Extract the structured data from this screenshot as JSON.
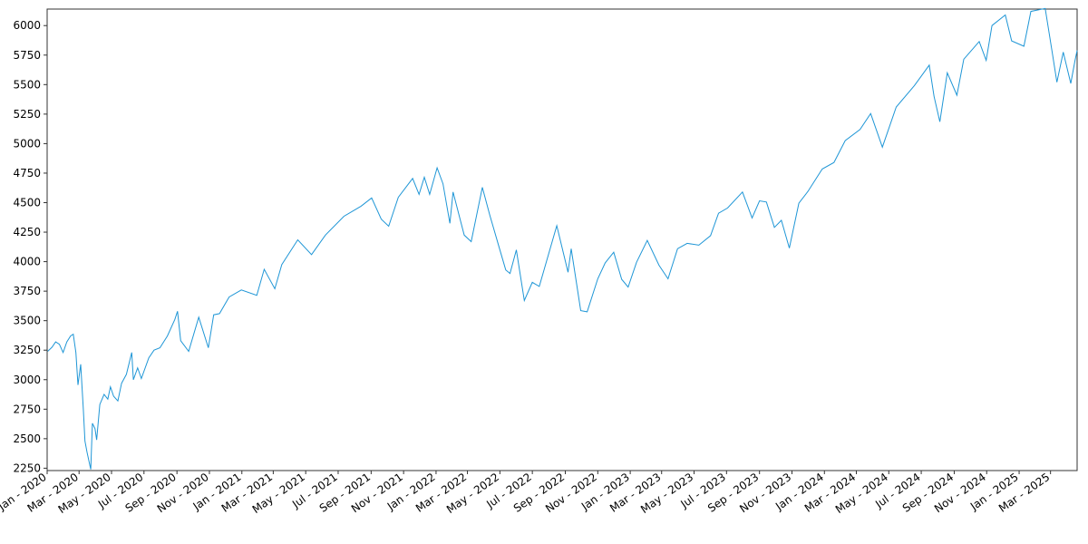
{
  "chart_data": {
    "type": "line",
    "title": "",
    "xlabel": "",
    "ylabel": "",
    "x_range": [
      "2020-01-01",
      "2025-04-20"
    ],
    "ylim": [
      2230,
      6140
    ],
    "y_ticks": [
      2250,
      2500,
      2750,
      3000,
      3250,
      3500,
      3750,
      4000,
      4250,
      4500,
      4750,
      5000,
      5250,
      5500,
      5750,
      6000
    ],
    "x_ticks": [
      {
        "date": "2020-01-01",
        "label": "Jan - 2020"
      },
      {
        "date": "2020-03-01",
        "label": "Mar - 2020"
      },
      {
        "date": "2020-05-01",
        "label": "May - 2020"
      },
      {
        "date": "2020-07-01",
        "label": "Jul - 2020"
      },
      {
        "date": "2020-09-01",
        "label": "Sep - 2020"
      },
      {
        "date": "2020-11-01",
        "label": "Nov - 2020"
      },
      {
        "date": "2021-01-01",
        "label": "Jan - 2021"
      },
      {
        "date": "2021-03-01",
        "label": "Mar - 2021"
      },
      {
        "date": "2021-05-01",
        "label": "May - 2021"
      },
      {
        "date": "2021-07-01",
        "label": "Jul - 2021"
      },
      {
        "date": "2021-09-01",
        "label": "Sep - 2021"
      },
      {
        "date": "2021-11-01",
        "label": "Nov - 2021"
      },
      {
        "date": "2022-01-01",
        "label": "Jan - 2022"
      },
      {
        "date": "2022-03-01",
        "label": "Mar - 2022"
      },
      {
        "date": "2022-05-01",
        "label": "May - 2022"
      },
      {
        "date": "2022-07-01",
        "label": "Jul - 2022"
      },
      {
        "date": "2022-09-01",
        "label": "Sep - 2022"
      },
      {
        "date": "2022-11-01",
        "label": "Nov - 2022"
      },
      {
        "date": "2023-01-01",
        "label": "Jan - 2023"
      },
      {
        "date": "2023-03-01",
        "label": "Mar - 2023"
      },
      {
        "date": "2023-05-01",
        "label": "May - 2023"
      },
      {
        "date": "2023-07-01",
        "label": "Jul - 2023"
      },
      {
        "date": "2023-09-01",
        "label": "Sep - 2023"
      },
      {
        "date": "2023-11-01",
        "label": "Nov - 2023"
      },
      {
        "date": "2024-01-01",
        "label": "Jan - 2024"
      },
      {
        "date": "2024-03-01",
        "label": "Mar - 2024"
      },
      {
        "date": "2024-05-01",
        "label": "May - 2024"
      },
      {
        "date": "2024-07-01",
        "label": "Jul - 2024"
      },
      {
        "date": "2024-09-01",
        "label": "Sep - 2024"
      },
      {
        "date": "2024-11-01",
        "label": "Nov - 2024"
      },
      {
        "date": "2025-01-01",
        "label": "Jan - 2025"
      },
      {
        "date": "2025-03-01",
        "label": "Mar - 2025"
      }
    ],
    "grid": false,
    "line_color": "#1f96d6",
    "series": [
      {
        "points": [
          [
            "2020-01-02",
            3240
          ],
          [
            "2020-01-10",
            3275
          ],
          [
            "2020-01-17",
            3320
          ],
          [
            "2020-01-24",
            3300
          ],
          [
            "2020-01-31",
            3230
          ],
          [
            "2020-02-07",
            3320
          ],
          [
            "2020-02-14",
            3370
          ],
          [
            "2020-02-19",
            3385
          ],
          [
            "2020-02-24",
            3230
          ],
          [
            "2020-02-28",
            2955
          ],
          [
            "2020-03-04",
            3130
          ],
          [
            "2020-03-09",
            2750
          ],
          [
            "2020-03-12",
            2480
          ],
          [
            "2020-03-16",
            2385
          ],
          [
            "2020-03-20",
            2300
          ],
          [
            "2020-03-23",
            2240
          ],
          [
            "2020-03-26",
            2630
          ],
          [
            "2020-03-31",
            2585
          ],
          [
            "2020-04-03",
            2490
          ],
          [
            "2020-04-09",
            2790
          ],
          [
            "2020-04-17",
            2875
          ],
          [
            "2020-04-24",
            2835
          ],
          [
            "2020-04-29",
            2940
          ],
          [
            "2020-05-05",
            2860
          ],
          [
            "2020-05-13",
            2820
          ],
          [
            "2020-05-20",
            2970
          ],
          [
            "2020-05-29",
            3045
          ],
          [
            "2020-06-08",
            3230
          ],
          [
            "2020-06-11",
            3000
          ],
          [
            "2020-06-19",
            3100
          ],
          [
            "2020-06-26",
            3010
          ],
          [
            "2020-07-10",
            3185
          ],
          [
            "2020-07-20",
            3250
          ],
          [
            "2020-07-31",
            3270
          ],
          [
            "2020-08-14",
            3370
          ],
          [
            "2020-08-28",
            3510
          ],
          [
            "2020-09-02",
            3580
          ],
          [
            "2020-09-08",
            3330
          ],
          [
            "2020-09-23",
            3240
          ],
          [
            "2020-10-12",
            3530
          ],
          [
            "2020-10-30",
            3270
          ],
          [
            "2020-11-09",
            3550
          ],
          [
            "2020-11-20",
            3560
          ],
          [
            "2020-12-08",
            3700
          ],
          [
            "2020-12-31",
            3760
          ],
          [
            "2021-01-29",
            3715
          ],
          [
            "2021-02-12",
            3935
          ],
          [
            "2021-03-04",
            3770
          ],
          [
            "2021-03-17",
            3975
          ],
          [
            "2021-04-16",
            4185
          ],
          [
            "2021-05-12",
            4060
          ],
          [
            "2021-06-07",
            4225
          ],
          [
            "2021-07-12",
            4385
          ],
          [
            "2021-08-13",
            4470
          ],
          [
            "2021-09-02",
            4540
          ],
          [
            "2021-09-20",
            4360
          ],
          [
            "2021-10-04",
            4300
          ],
          [
            "2021-10-22",
            4545
          ],
          [
            "2021-11-18",
            4705
          ],
          [
            "2021-11-30",
            4570
          ],
          [
            "2021-12-10",
            4715
          ],
          [
            "2021-12-20",
            4570
          ],
          [
            "2022-01-03",
            4795
          ],
          [
            "2022-01-14",
            4660
          ],
          [
            "2022-01-27",
            4325
          ],
          [
            "2022-02-02",
            4590
          ],
          [
            "2022-02-23",
            4225
          ],
          [
            "2022-03-08",
            4170
          ],
          [
            "2022-03-29",
            4630
          ],
          [
            "2022-04-12",
            4395
          ],
          [
            "2022-04-29",
            4130
          ],
          [
            "2022-05-12",
            3930
          ],
          [
            "2022-05-20",
            3900
          ],
          [
            "2022-06-01",
            4100
          ],
          [
            "2022-06-16",
            3670
          ],
          [
            "2022-07-01",
            3825
          ],
          [
            "2022-07-14",
            3790
          ],
          [
            "2022-08-16",
            4305
          ],
          [
            "2022-09-06",
            3910
          ],
          [
            "2022-09-12",
            4110
          ],
          [
            "2022-09-30",
            3585
          ],
          [
            "2022-10-12",
            3575
          ],
          [
            "2022-11-01",
            3855
          ],
          [
            "2022-11-15",
            3990
          ],
          [
            "2022-12-01",
            4080
          ],
          [
            "2022-12-16",
            3850
          ],
          [
            "2022-12-28",
            3785
          ],
          [
            "2023-01-13",
            3995
          ],
          [
            "2023-02-02",
            4180
          ],
          [
            "2023-02-24",
            3970
          ],
          [
            "2023-03-13",
            3855
          ],
          [
            "2023-03-31",
            4110
          ],
          [
            "2023-04-18",
            4155
          ],
          [
            "2023-05-10",
            4140
          ],
          [
            "2023-06-01",
            4220
          ],
          [
            "2023-06-16",
            4410
          ],
          [
            "2023-07-03",
            4455
          ],
          [
            "2023-07-31",
            4590
          ],
          [
            "2023-08-18",
            4370
          ],
          [
            "2023-09-01",
            4515
          ],
          [
            "2023-09-14",
            4505
          ],
          [
            "2023-09-29",
            4290
          ],
          [
            "2023-10-12",
            4350
          ],
          [
            "2023-10-27",
            4115
          ],
          [
            "2023-11-14",
            4495
          ],
          [
            "2023-12-01",
            4595
          ],
          [
            "2023-12-28",
            4785
          ],
          [
            "2024-01-19",
            4840
          ],
          [
            "2024-02-09",
            5025
          ],
          [
            "2024-03-08",
            5120
          ],
          [
            "2024-03-28",
            5255
          ],
          [
            "2024-04-19",
            4970
          ],
          [
            "2024-05-15",
            5310
          ],
          [
            "2024-06-18",
            5490
          ],
          [
            "2024-07-16",
            5665
          ],
          [
            "2024-07-25",
            5400
          ],
          [
            "2024-08-05",
            5185
          ],
          [
            "2024-08-19",
            5600
          ],
          [
            "2024-09-06",
            5410
          ],
          [
            "2024-09-19",
            5715
          ],
          [
            "2024-10-18",
            5865
          ],
          [
            "2024-10-31",
            5705
          ],
          [
            "2024-11-11",
            6000
          ],
          [
            "2024-12-06",
            6090
          ],
          [
            "2024-12-18",
            5870
          ],
          [
            "2025-01-10",
            5825
          ],
          [
            "2025-01-23",
            6120
          ],
          [
            "2025-02-19",
            6145
          ],
          [
            "2025-03-04",
            5780
          ],
          [
            "2025-03-13",
            5520
          ],
          [
            "2025-03-25",
            5775
          ],
          [
            "2025-04-08",
            5510
          ],
          [
            "2025-04-16",
            5705
          ],
          [
            "2025-04-20",
            5790
          ]
        ]
      }
    ]
  }
}
